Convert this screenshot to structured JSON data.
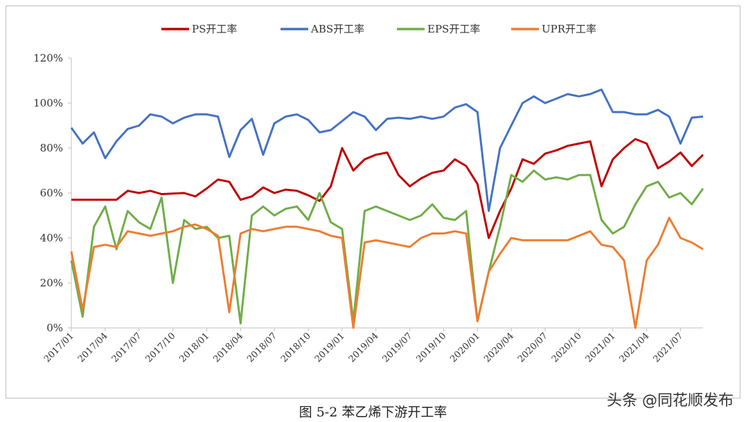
{
  "caption": "图 5-2 苯乙烯下游开工率",
  "watermark": "头条 @同花顺发布",
  "chart_data": {
    "type": "line",
    "title": "",
    "xlabel": "",
    "ylabel": "",
    "ylim": [
      0,
      120
    ],
    "y_ticks": [
      "0%",
      "20%",
      "40%",
      "60%",
      "80%",
      "100%",
      "120%"
    ],
    "x_tick_labels": [
      "2017/01",
      "2017/04",
      "2017/07",
      "2017/10",
      "2018/01",
      "2018/04",
      "2018/07",
      "2018/10",
      "2019/01",
      "2019/04",
      "2019/07",
      "2019/10",
      "2020/01",
      "2020/04",
      "2020/07",
      "2020/10",
      "2021/01",
      "2021/04",
      "2021/07"
    ],
    "x_range": [
      "2017/01",
      "2021/09"
    ],
    "x_unit": "month",
    "legend_position": "top",
    "grid": false,
    "series": [
      {
        "name": "PS开工率",
        "color": "#c00000",
        "points": [
          [
            0,
            57
          ],
          [
            2,
            57
          ],
          [
            4,
            57
          ],
          [
            5,
            61
          ],
          [
            6,
            60
          ],
          [
            7,
            61
          ],
          [
            8,
            59.5
          ],
          [
            10,
            60
          ],
          [
            11,
            58.5
          ],
          [
            12,
            62
          ],
          [
            13,
            66
          ],
          [
            14,
            65
          ],
          [
            15,
            57
          ],
          [
            16,
            58.5
          ],
          [
            17,
            62.5
          ],
          [
            18,
            60
          ],
          [
            19,
            61.5
          ],
          [
            20,
            61
          ],
          [
            21,
            59
          ],
          [
            22,
            56.5
          ],
          [
            23,
            63
          ],
          [
            24,
            80
          ],
          [
            25,
            70
          ],
          [
            26,
            75
          ],
          [
            27,
            77
          ],
          [
            28,
            78
          ],
          [
            29,
            68
          ],
          [
            30,
            63
          ],
          [
            31,
            66.5
          ],
          [
            32,
            69
          ],
          [
            33,
            70
          ],
          [
            34,
            75
          ],
          [
            35,
            72
          ],
          [
            36,
            64
          ],
          [
            37,
            40
          ],
          [
            38,
            52
          ],
          [
            39,
            62
          ],
          [
            40,
            75
          ],
          [
            41,
            73
          ],
          [
            42,
            77.5
          ],
          [
            43,
            79
          ],
          [
            44,
            81
          ],
          [
            45,
            82
          ],
          [
            46,
            83
          ],
          [
            47,
            63
          ],
          [
            48,
            75
          ],
          [
            49,
            80
          ],
          [
            50,
            84
          ],
          [
            51,
            82
          ],
          [
            52,
            71
          ],
          [
            53,
            74
          ],
          [
            54,
            78
          ],
          [
            55,
            72
          ],
          [
            56,
            77
          ]
        ]
      },
      {
        "name": "ABS开工率",
        "color": "#4472c4",
        "points": [
          [
            0,
            89
          ],
          [
            1,
            82
          ],
          [
            2,
            87
          ],
          [
            3,
            75.5
          ],
          [
            4,
            83
          ],
          [
            5,
            88.5
          ],
          [
            6,
            90
          ],
          [
            7,
            95
          ],
          [
            8,
            94
          ],
          [
            9,
            91
          ],
          [
            10,
            93.5
          ],
          [
            11,
            95
          ],
          [
            12,
            95
          ],
          [
            13,
            94
          ],
          [
            14,
            76
          ],
          [
            15,
            88
          ],
          [
            16,
            93
          ],
          [
            17,
            77
          ],
          [
            18,
            91
          ],
          [
            19,
            94
          ],
          [
            20,
            95
          ],
          [
            21,
            92.5
          ],
          [
            22,
            87
          ],
          [
            23,
            88
          ],
          [
            24,
            92
          ],
          [
            25,
            96
          ],
          [
            26,
            94
          ],
          [
            27,
            88
          ],
          [
            28,
            93
          ],
          [
            29,
            93.5
          ],
          [
            30,
            93
          ],
          [
            31,
            94
          ],
          [
            32,
            93
          ],
          [
            33,
            94
          ],
          [
            34,
            98
          ],
          [
            35,
            99.5
          ],
          [
            36,
            96
          ],
          [
            37,
            52
          ],
          [
            38,
            80
          ],
          [
            39,
            90
          ],
          [
            40,
            100
          ],
          [
            41,
            103
          ],
          [
            42,
            100
          ],
          [
            43,
            102
          ],
          [
            44,
            104
          ],
          [
            45,
            103
          ],
          [
            46,
            104
          ],
          [
            47,
            106
          ],
          [
            48,
            96
          ],
          [
            49,
            96
          ],
          [
            50,
            95
          ],
          [
            51,
            95
          ],
          [
            52,
            97
          ],
          [
            53,
            94
          ],
          [
            54,
            82
          ],
          [
            55,
            93.5
          ],
          [
            56,
            94
          ]
        ]
      },
      {
        "name": "EPS开工率",
        "color": "#70ad47",
        "points": [
          [
            0,
            30
          ],
          [
            1,
            5
          ],
          [
            2,
            45
          ],
          [
            3,
            54
          ],
          [
            4,
            35
          ],
          [
            5,
            52
          ],
          [
            6,
            47
          ],
          [
            7,
            44
          ],
          [
            8,
            58
          ],
          [
            9,
            20
          ],
          [
            10,
            48
          ],
          [
            11,
            44
          ],
          [
            12,
            45
          ],
          [
            13,
            40
          ],
          [
            14,
            41
          ],
          [
            15,
            2
          ],
          [
            16,
            50
          ],
          [
            17,
            54
          ],
          [
            18,
            50
          ],
          [
            19,
            53
          ],
          [
            20,
            54
          ],
          [
            21,
            48
          ],
          [
            22,
            60
          ],
          [
            23,
            47
          ],
          [
            24,
            44
          ],
          [
            25,
            3
          ],
          [
            26,
            52
          ],
          [
            27,
            54
          ],
          [
            28,
            52
          ],
          [
            29,
            50
          ],
          [
            30,
            48
          ],
          [
            31,
            50
          ],
          [
            32,
            55
          ],
          [
            33,
            49
          ],
          [
            34,
            48
          ],
          [
            35,
            52
          ],
          [
            36,
            3
          ],
          [
            37,
            25
          ],
          [
            38,
            45
          ],
          [
            39,
            68
          ],
          [
            40,
            65
          ],
          [
            41,
            70
          ],
          [
            42,
            66
          ],
          [
            43,
            67
          ],
          [
            44,
            66
          ],
          [
            45,
            68
          ],
          [
            46,
            68
          ],
          [
            47,
            48
          ],
          [
            48,
            42
          ],
          [
            49,
            45
          ],
          [
            50,
            55
          ],
          [
            51,
            63
          ],
          [
            52,
            65
          ],
          [
            53,
            58
          ],
          [
            54,
            60
          ],
          [
            55,
            55
          ],
          [
            56,
            62
          ]
        ]
      },
      {
        "name": "UPR开工率",
        "color": "#ed7d31",
        "points": [
          [
            0,
            34
          ],
          [
            1,
            8
          ],
          [
            2,
            36
          ],
          [
            3,
            37
          ],
          [
            4,
            36
          ],
          [
            5,
            43
          ],
          [
            6,
            42
          ],
          [
            7,
            41
          ],
          [
            8,
            42
          ],
          [
            9,
            43
          ],
          [
            10,
            45
          ],
          [
            11,
            46
          ],
          [
            12,
            44
          ],
          [
            13,
            41
          ],
          [
            14,
            7
          ],
          [
            15,
            42
          ],
          [
            16,
            44
          ],
          [
            17,
            43
          ],
          [
            18,
            44
          ],
          [
            19,
            45
          ],
          [
            20,
            45
          ],
          [
            21,
            44
          ],
          [
            22,
            43
          ],
          [
            23,
            41
          ],
          [
            24,
            40
          ],
          [
            25,
            0
          ],
          [
            26,
            38
          ],
          [
            27,
            39
          ],
          [
            28,
            38
          ],
          [
            29,
            37
          ],
          [
            30,
            36
          ],
          [
            31,
            40
          ],
          [
            32,
            42
          ],
          [
            33,
            42
          ],
          [
            34,
            43
          ],
          [
            35,
            42
          ],
          [
            36,
            3
          ],
          [
            37,
            25
          ],
          [
            38,
            33
          ],
          [
            39,
            40
          ],
          [
            40,
            39
          ],
          [
            41,
            39
          ],
          [
            42,
            39
          ],
          [
            43,
            39
          ],
          [
            44,
            39
          ],
          [
            45,
            41
          ],
          [
            46,
            43
          ],
          [
            47,
            37
          ],
          [
            48,
            36
          ],
          [
            49,
            30
          ],
          [
            50,
            0
          ],
          [
            51,
            30
          ],
          [
            52,
            37
          ],
          [
            53,
            49
          ],
          [
            54,
            40
          ],
          [
            55,
            38
          ],
          [
            56,
            35
          ]
        ]
      }
    ]
  }
}
